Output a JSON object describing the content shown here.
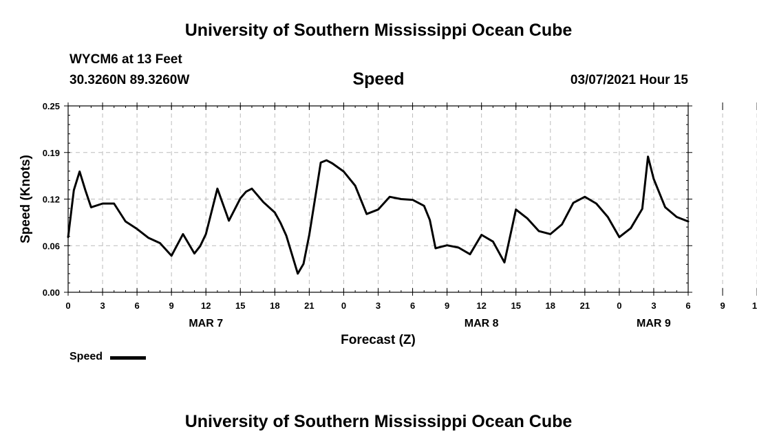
{
  "header": {
    "title": "University of Southern Mississippi Ocean Cube",
    "station": "WYCM6 at 13 Feet",
    "coords": "30.3260N 89.3260W",
    "variable": "Speed",
    "datetime": "03/07/2021 Hour 15"
  },
  "footer": {
    "title": "University of Southern Mississippi Ocean Cube"
  },
  "legend": {
    "label": "Speed"
  },
  "chart_data": {
    "type": "line",
    "xlabel": "Forecast (Z)",
    "ylabel": "Speed (Knots)",
    "ylim": [
      0,
      0.25
    ],
    "yticks": [
      "0.00",
      "0.06",
      "0.12",
      "0.19",
      "0.25"
    ],
    "xlim": [
      0,
      54
    ],
    "xtick_labels": [
      "0",
      "3",
      "6",
      "9",
      "12",
      "15",
      "18",
      "21",
      "0",
      "3",
      "6",
      "9",
      "12",
      "15",
      "18",
      "21",
      "0",
      "3",
      "6",
      "9",
      "12",
      "15",
      "18",
      "21",
      "0",
      "3",
      "6"
    ],
    "date_labels": [
      {
        "label": "MAR 7",
        "hour": 12
      },
      {
        "label": "MAR 8",
        "hour": 36
      },
      {
        "label": "MAR 9",
        "hour": 51
      }
    ],
    "grid": true,
    "series": [
      {
        "name": "Speed",
        "color": "#000000",
        "x": [
          0,
          0.5,
          1,
          1.5,
          2,
          3,
          4,
          5,
          6,
          7,
          8,
          9,
          10,
          11,
          11.5,
          12,
          13,
          14,
          15,
          15.5,
          16,
          17,
          18,
          18.5,
          19,
          20,
          20.5,
          21,
          21.5,
          22,
          22.5,
          23,
          24,
          25,
          26,
          27,
          28,
          29,
          30,
          31,
          31.5,
          32,
          33,
          34,
          35,
          36,
          37,
          38,
          39,
          40,
          41,
          42,
          43,
          44,
          45,
          46,
          47,
          48,
          49,
          50,
          50.5,
          51,
          52,
          53,
          54
        ],
        "values": [
          0.074,
          0.137,
          0.162,
          0.137,
          0.114,
          0.119,
          0.119,
          0.095,
          0.085,
          0.073,
          0.066,
          0.049,
          0.078,
          0.052,
          0.062,
          0.078,
          0.139,
          0.096,
          0.126,
          0.135,
          0.139,
          0.121,
          0.107,
          0.093,
          0.076,
          0.025,
          0.038,
          0.077,
          0.125,
          0.174,
          0.177,
          0.173,
          0.162,
          0.143,
          0.105,
          0.111,
          0.128,
          0.125,
          0.124,
          0.116,
          0.097,
          0.059,
          0.063,
          0.06,
          0.051,
          0.077,
          0.068,
          0.04,
          0.111,
          0.099,
          0.082,
          0.078,
          0.091,
          0.12,
          0.128,
          0.119,
          0.101,
          0.074,
          0.086,
          0.112,
          0.182,
          0.152,
          0.114,
          0.101,
          0.095
        ]
      }
    ]
  }
}
